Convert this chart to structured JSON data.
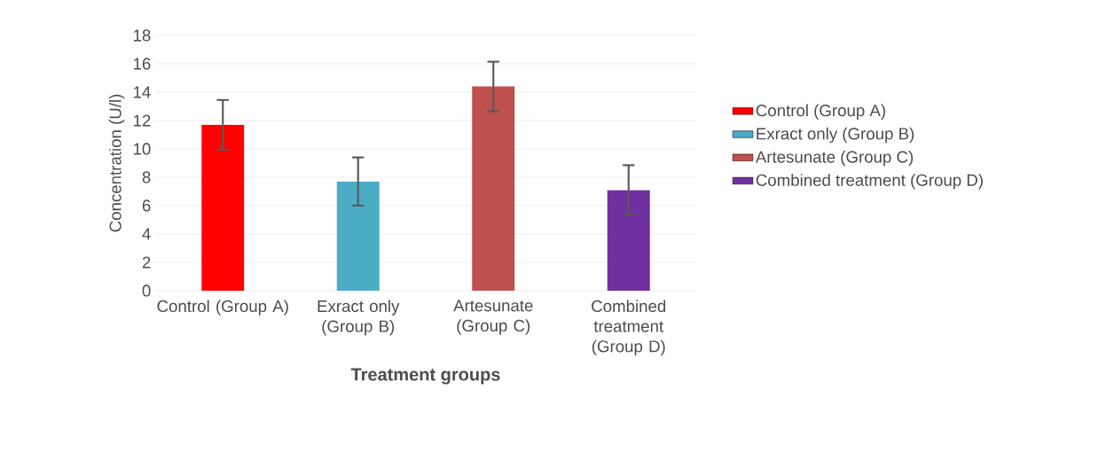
{
  "chart_data": {
    "type": "bar",
    "xlabel": "Treatment groups",
    "ylabel": "Concentration (U/l)",
    "categories": [
      "Control (Group A)",
      "Exract only (Group B)",
      "Artesunate (Group C)",
      "Combined treatment (Group D)"
    ],
    "series": [
      {
        "name": "Control       (Group A)",
        "color": "#ff0000",
        "values": [
          11.7,
          null,
          null,
          null
        ],
        "errors": [
          1.75,
          null,
          null,
          null
        ]
      },
      {
        "name": "Exract only (Group B)",
        "color": "#4bacc6",
        "values": [
          null,
          7.7,
          null,
          null
        ],
        "errors": [
          null,
          1.7,
          null,
          null
        ]
      },
      {
        "name": "Artesunate (Group C)",
        "color": "#c0504d",
        "values": [
          null,
          null,
          14.4,
          null
        ],
        "errors": [
          null,
          null,
          1.75,
          null
        ]
      },
      {
        "name": "Combined treatment (Group D)",
        "color": "#7030a0",
        "values": [
          null,
          null,
          null,
          7.1
        ],
        "errors": [
          null,
          null,
          null,
          1.75
        ]
      }
    ],
    "ylim": [
      0,
      18
    ],
    "yticks": [
      0,
      2,
      4,
      6,
      8,
      10,
      12,
      14,
      16,
      18
    ],
    "grid": "y",
    "legend": "right"
  }
}
